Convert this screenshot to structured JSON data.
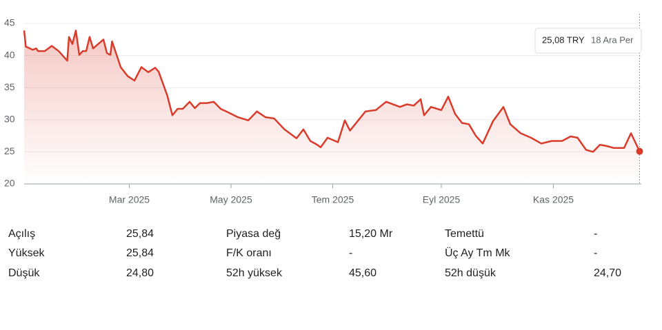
{
  "chart_data": {
    "type": "line",
    "x": [
      0,
      1,
      5,
      7,
      8,
      12,
      16,
      20,
      25,
      26,
      28,
      30,
      32,
      34,
      36,
      38,
      40,
      46,
      48,
      50,
      51,
      56,
      60,
      64,
      68,
      72,
      76,
      78,
      83,
      86,
      89,
      92,
      96,
      99,
      102,
      106,
      110,
      114,
      118,
      124,
      130,
      135,
      140,
      145,
      151,
      158,
      162,
      166,
      170,
      172,
      176,
      182,
      186,
      189,
      198,
      204,
      210,
      218,
      222,
      226,
      230,
      232,
      236,
      242,
      246,
      250,
      254,
      258,
      262,
      266,
      272,
      278,
      282,
      288,
      294,
      300,
      306,
      312,
      317,
      321,
      326,
      330,
      334,
      338,
      342,
      348,
      352,
      357
    ],
    "series": [
      {
        "name": "TRY",
        "color": "#d93b2b",
        "values": [
          43.9,
          41.4,
          40.9,
          41.1,
          40.7,
          40.7,
          41.5,
          40.7,
          39.2,
          42.9,
          41.8,
          43.9,
          40.1,
          40.7,
          40.7,
          42.9,
          41.1,
          42.5,
          40.4,
          40.1,
          42.2,
          38.2,
          36.8,
          36.1,
          38.2,
          37.4,
          38.1,
          37.5,
          33.8,
          30.7,
          31.7,
          31.7,
          32.8,
          31.8,
          32.6,
          32.6,
          32.8,
          31.7,
          31.2,
          30.4,
          29.9,
          31.3,
          30.4,
          30.2,
          28.5,
          27.1,
          28.5,
          26.7,
          26.1,
          25.7,
          27.2,
          26.5,
          29.9,
          28.3,
          31.3,
          31.5,
          32.8,
          32.0,
          32.4,
          32.2,
          33.2,
          30.7,
          32.0,
          31.5,
          33.6,
          30.9,
          29.5,
          29.3,
          27.5,
          26.3,
          29.8,
          32.0,
          29.3,
          27.9,
          27.2,
          26.3,
          26.7,
          26.7,
          27.4,
          27.2,
          25.3,
          25.0,
          26.1,
          25.9,
          25.6,
          25.6,
          27.9,
          25.08
        ]
      }
    ],
    "xlim": [
      0,
      358
    ],
    "xticks": [
      {
        "value": 61,
        "label": "Mar 2025"
      },
      {
        "value": 120,
        "label": "May 2025"
      },
      {
        "value": 179,
        "label": "Tem 2025"
      },
      {
        "value": 242,
        "label": "Eyl 2025"
      },
      {
        "value": 307,
        "label": "Kas 2025"
      }
    ],
    "ylim": [
      20,
      45
    ],
    "yticks": [
      20,
      25,
      30,
      35,
      40,
      45
    ],
    "grid": true,
    "tooltip": {
      "price": "25,08 TRY",
      "date": "18 Ara Per"
    }
  },
  "stats": {
    "rows": [
      [
        "Açılış",
        "25,84",
        "Piyasa değ",
        "15,20 Mr",
        "Temettü",
        "-"
      ],
      [
        "Yüksek",
        "25,84",
        "F/K oranı",
        "-",
        "Üç Ay Tm Mk",
        "-"
      ],
      [
        "Düşük",
        "24,80",
        "52h yüksek",
        "45,60",
        "52h düşük",
        "24,70"
      ]
    ]
  }
}
